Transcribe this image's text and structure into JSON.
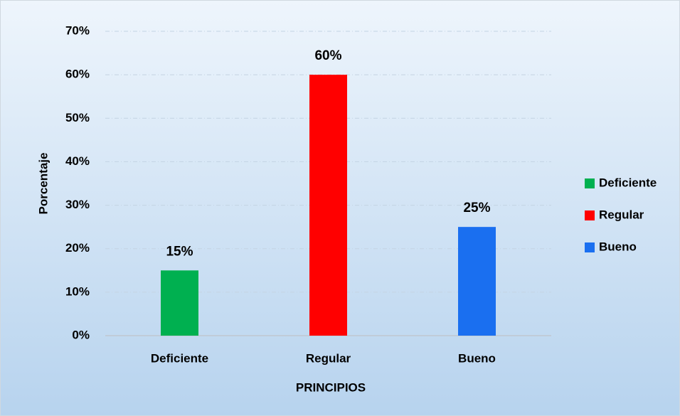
{
  "chart_data": {
    "type": "bar",
    "x_label": "PRINCIPIOS",
    "y_label": "Porcentaje",
    "categories": [
      "Deficiente",
      "Regular",
      "Bueno"
    ],
    "values": [
      15,
      60,
      25
    ],
    "value_labels": [
      "15%",
      "60%",
      "25%"
    ],
    "colors": [
      "#00b050",
      "#ff0000",
      "#1a6ff0"
    ],
    "ylim": [
      0,
      70
    ],
    "yticks": [
      {
        "value": 0,
        "label": "0%"
      },
      {
        "value": 10,
        "label": "10%"
      },
      {
        "value": 20,
        "label": "20%"
      },
      {
        "value": 30,
        "label": "30%"
      },
      {
        "value": 40,
        "label": "40%"
      },
      {
        "value": 50,
        "label": "50%"
      },
      {
        "value": 60,
        "label": "60%"
      },
      {
        "value": 70,
        "label": "70%"
      }
    ],
    "grid": true,
    "legend": "right"
  }
}
